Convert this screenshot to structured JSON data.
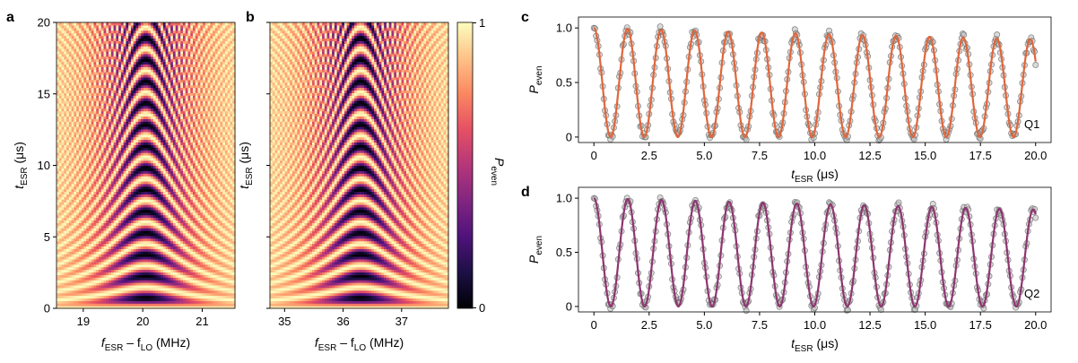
{
  "panel_letters": {
    "a": "a",
    "b": "b",
    "c": "c",
    "d": "d"
  },
  "colors": {
    "magma": [
      "#000004",
      "#1c1044",
      "#4f127b",
      "#812581",
      "#b5367a",
      "#e55064",
      "#fb8761",
      "#fec287",
      "#fcfdbf"
    ],
    "q1_fit": "#e0663a",
    "q2_fit": "#8e3570",
    "data_points": "#555555"
  },
  "colorbar": {
    "label_main": "P",
    "label_sub": "even",
    "ticks": [
      "0",
      "1"
    ],
    "range": [
      0,
      1
    ]
  },
  "chart_data": [
    {
      "panel": "a",
      "type": "heatmap",
      "title": "",
      "xlabel": {
        "main": "f",
        "sub1": "ESR",
        "mid": " – f",
        "sub2": "LO",
        "unit": " (MHz)"
      },
      "ylabel": {
        "main": "t",
        "sub": "ESR",
        "unit": " (μs)"
      },
      "xlim": [
        18.55,
        21.55
      ],
      "ylim": [
        0,
        20
      ],
      "xticks": [
        "19",
        "20",
        "21"
      ],
      "xtick_values": [
        19,
        20,
        21
      ],
      "yticks": [
        "0",
        "5",
        "10",
        "15",
        "20"
      ],
      "ytick_values": [
        0,
        5,
        10,
        15,
        20
      ],
      "center_frequency_mhz": 20.05,
      "rabi_frequency_mhz": 0.66,
      "z_range": [
        0,
        1
      ]
    },
    {
      "panel": "b",
      "type": "heatmap",
      "title": "",
      "xlabel": {
        "main": "f",
        "sub1": "ESR",
        "mid": " – f",
        "sub2": "LO",
        "unit": " (MHz)"
      },
      "ylabel": {
        "main": "t",
        "sub": "ESR",
        "unit": " (μs)"
      },
      "xlim": [
        34.75,
        37.8
      ],
      "ylim": [
        0,
        20
      ],
      "xticks": [
        "35",
        "36",
        "37"
      ],
      "xtick_values": [
        35,
        36,
        37
      ],
      "yticks": [],
      "ytick_values": [],
      "center_frequency_mhz": 36.3,
      "rabi_frequency_mhz": 0.66,
      "z_range": [
        0,
        1
      ]
    },
    {
      "panel": "c",
      "type": "line",
      "title": "",
      "series": [
        {
          "name": "Q1",
          "kind": "fit",
          "rabi_period_us": 1.52,
          "amplitude_min": 0.0,
          "amplitude_max": 1.0
        }
      ],
      "xlabel": {
        "main": "t",
        "sub": "ESR",
        "unit": " (μs)"
      },
      "ylabel": {
        "main": "P",
        "sub": "even"
      },
      "xlim": [
        -0.7,
        20.7
      ],
      "ylim": [
        -0.05,
        1.1
      ],
      "xticks": [
        "0",
        "2.5",
        "5.0",
        "7.5",
        "10.0",
        "12.5",
        "15.0",
        "17.5",
        "20.0"
      ],
      "xtick_values": [
        0,
        2.5,
        5,
        7.5,
        10,
        12.5,
        15,
        17.5,
        20
      ],
      "yticks": [
        "0",
        "0.5",
        "1.0"
      ],
      "ytick_values": [
        0,
        0.5,
        1.0
      ]
    },
    {
      "panel": "d",
      "type": "line",
      "title": "",
      "series": [
        {
          "name": "Q2",
          "kind": "fit",
          "rabi_period_us": 1.53,
          "amplitude_min": 0.0,
          "amplitude_max": 1.0
        }
      ],
      "xlabel": {
        "main": "t",
        "sub": "ESR",
        "unit": " (μs)"
      },
      "ylabel": {
        "main": "P",
        "sub": "even"
      },
      "xlim": [
        -0.7,
        20.7
      ],
      "ylim": [
        -0.05,
        1.1
      ],
      "xticks": [
        "0",
        "2.5",
        "5.0",
        "7.5",
        "10.0",
        "12.5",
        "15.0",
        "17.5",
        "20.0"
      ],
      "xtick_values": [
        0,
        2.5,
        5,
        7.5,
        10,
        12.5,
        15,
        17.5,
        20
      ],
      "yticks": [
        "0",
        "0.5",
        "1.0"
      ],
      "ytick_values": [
        0,
        0.5,
        1.0
      ]
    }
  ]
}
